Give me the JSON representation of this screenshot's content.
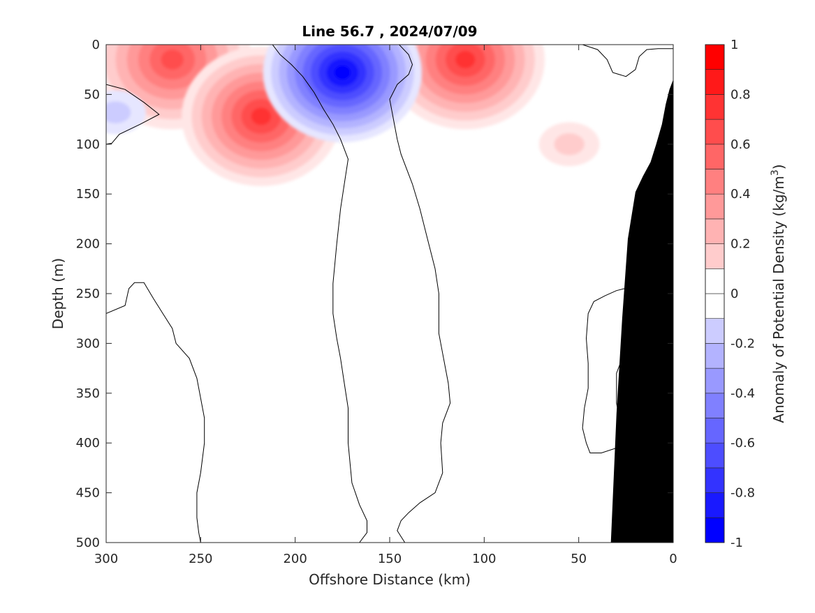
{
  "chart_data": {
    "type": "heatmap",
    "title": "Line 56.7 , 2024/07/09",
    "xlabel": "Offshore Distance (km)",
    "ylabel": "Depth (m)",
    "colorbar_label": "Anomaly of Potential Density (kg/m",
    "colorbar_label_sup": "3",
    "colorbar_label_end": ")",
    "xlim": [
      300,
      0
    ],
    "ylim": [
      0,
      500
    ],
    "x_reversed": true,
    "y_reversed": true,
    "xticks": [
      300,
      250,
      200,
      150,
      100,
      50,
      0
    ],
    "xtick_labels": [
      "300",
      "250",
      "200",
      "150",
      "100",
      "50",
      "0"
    ],
    "yticks": [
      0,
      50,
      100,
      150,
      200,
      250,
      300,
      350,
      400,
      450,
      500
    ],
    "ytick_labels": [
      "0",
      "50",
      "100",
      "150",
      "200",
      "250",
      "300",
      "350",
      "400",
      "450",
      "500"
    ],
    "clim": [
      -1,
      1
    ],
    "colorbar_levels": [
      -1,
      -0.9,
      -0.8,
      -0.7,
      -0.6,
      -0.5,
      -0.4,
      -0.3,
      -0.2,
      -0.1,
      0,
      0.1,
      0.2,
      0.3,
      0.4,
      0.5,
      0.6,
      0.7,
      0.8,
      0.9,
      1
    ],
    "colorbar_ticks": [
      -1,
      -0.8,
      -0.6,
      -0.4,
      -0.2,
      0,
      0.2,
      0.4,
      0.6,
      0.8,
      1
    ],
    "colorbar_tick_labels": [
      "-1",
      "-0.8",
      "-0.6",
      "-0.4",
      "-0.2",
      "0",
      "0.2",
      "0.4",
      "0.6",
      "0.8",
      "1"
    ],
    "colors": {
      "positive_max": "#ff0000",
      "negative_max": "#0000ff",
      "zero_band": "#ffffff",
      "seafloor": "#000000",
      "zero_contour": "#000000"
    },
    "features": [
      {
        "sign": "positive",
        "center_x_km": 265,
        "center_depth_m": 15,
        "peak": 0.7
      },
      {
        "sign": "positive",
        "center_x_km": 218,
        "center_depth_m": 72,
        "peak": 0.75
      },
      {
        "sign": "positive",
        "center_x_km": 110,
        "center_depth_m": 15,
        "peak": 0.75
      },
      {
        "sign": "positive",
        "center_x_km": 55,
        "center_depth_m": 100,
        "peak": 0.15
      },
      {
        "sign": "negative",
        "center_x_km": 175,
        "center_depth_m": 28,
        "peak": -0.95
      },
      {
        "sign": "negative",
        "center_x_km": 295,
        "center_depth_m": 68,
        "peak": -0.2
      }
    ],
    "zero_contours": [
      [
        [
          300,
          40
        ],
        [
          290,
          45
        ],
        [
          280,
          58
        ],
        [
          272,
          70
        ],
        [
          282,
          80
        ],
        [
          293,
          90
        ],
        [
          297,
          99
        ],
        [
          300,
          100
        ]
      ],
      [
        [
          300,
          270
        ],
        [
          290,
          262
        ],
        [
          288,
          245
        ],
        [
          285,
          239
        ],
        [
          280,
          239
        ],
        [
          275,
          255
        ],
        [
          270,
          270
        ],
        [
          265,
          285
        ],
        [
          263,
          300
        ],
        [
          256,
          315
        ],
        [
          252,
          335
        ],
        [
          250,
          355
        ],
        [
          248,
          375
        ],
        [
          248,
          400
        ],
        [
          250,
          430
        ],
        [
          252,
          450
        ],
        [
          252,
          475
        ],
        [
          251,
          490
        ],
        [
          250,
          500
        ]
      ],
      [
        [
          212,
          0
        ],
        [
          208,
          10
        ],
        [
          202,
          20
        ],
        [
          196,
          32
        ],
        [
          190,
          48
        ],
        [
          185,
          65
        ],
        [
          180,
          80
        ],
        [
          176,
          95
        ],
        [
          172,
          115
        ],
        [
          174,
          140
        ],
        [
          176,
          165
        ],
        [
          178,
          200
        ],
        [
          180,
          240
        ],
        [
          180,
          270
        ],
        [
          178,
          295
        ],
        [
          176,
          315
        ],
        [
          174,
          340
        ],
        [
          172,
          365
        ],
        [
          172,
          400
        ],
        [
          170,
          440
        ],
        [
          166,
          462
        ],
        [
          162,
          478
        ],
        [
          162,
          490
        ],
        [
          166,
          500
        ]
      ],
      [
        [
          145,
          0
        ],
        [
          140,
          10
        ],
        [
          138,
          20
        ],
        [
          140,
          30
        ],
        [
          146,
          40
        ],
        [
          150,
          55
        ],
        [
          148,
          75
        ],
        [
          146,
          95
        ],
        [
          144,
          110
        ],
        [
          138,
          140
        ],
        [
          134,
          165
        ],
        [
          130,
          195
        ],
        [
          126,
          225
        ],
        [
          124,
          250
        ],
        [
          124,
          290
        ],
        [
          122,
          310
        ],
        [
          119,
          340
        ],
        [
          118,
          360
        ],
        [
          122,
          380
        ],
        [
          123,
          400
        ],
        [
          122,
          430
        ],
        [
          126,
          450
        ],
        [
          134,
          460
        ],
        [
          140,
          470
        ],
        [
          144,
          478
        ],
        [
          146,
          488
        ],
        [
          142,
          500
        ]
      ],
      [
        [
          48,
          0
        ],
        [
          40,
          5
        ],
        [
          35,
          15
        ],
        [
          32,
          28
        ],
        [
          25,
          32
        ],
        [
          20,
          25
        ],
        [
          18,
          12
        ],
        [
          14,
          5
        ],
        [
          8,
          4
        ],
        [
          2,
          4
        ],
        [
          0,
          4
        ]
      ],
      [
        [
          26,
          245
        ],
        [
          22,
          250
        ],
        [
          20,
          270
        ],
        [
          22,
          295
        ],
        [
          26,
          310
        ],
        [
          30,
          330
        ],
        [
          30,
          345
        ],
        [
          30,
          360
        ],
        [
          28,
          380
        ],
        [
          28,
          395
        ],
        [
          30,
          405
        ],
        [
          38,
          410
        ],
        [
          44,
          410
        ],
        [
          46,
          400
        ],
        [
          48,
          385
        ],
        [
          47,
          365
        ],
        [
          45,
          345
        ],
        [
          45,
          320
        ],
        [
          46,
          295
        ],
        [
          45,
          270
        ],
        [
          42,
          258
        ],
        [
          36,
          252
        ],
        [
          30,
          247
        ],
        [
          26,
          245
        ]
      ]
    ],
    "seafloor_boundary": [
      [
        0,
        35
      ],
      [
        2,
        45
      ],
      [
        4,
        60
      ],
      [
        6,
        80
      ],
      [
        9,
        100
      ],
      [
        12,
        118
      ],
      [
        16,
        132
      ],
      [
        20,
        148
      ],
      [
        24,
        195
      ],
      [
        27,
        275
      ],
      [
        30,
        370
      ],
      [
        33,
        500
      ]
    ]
  }
}
